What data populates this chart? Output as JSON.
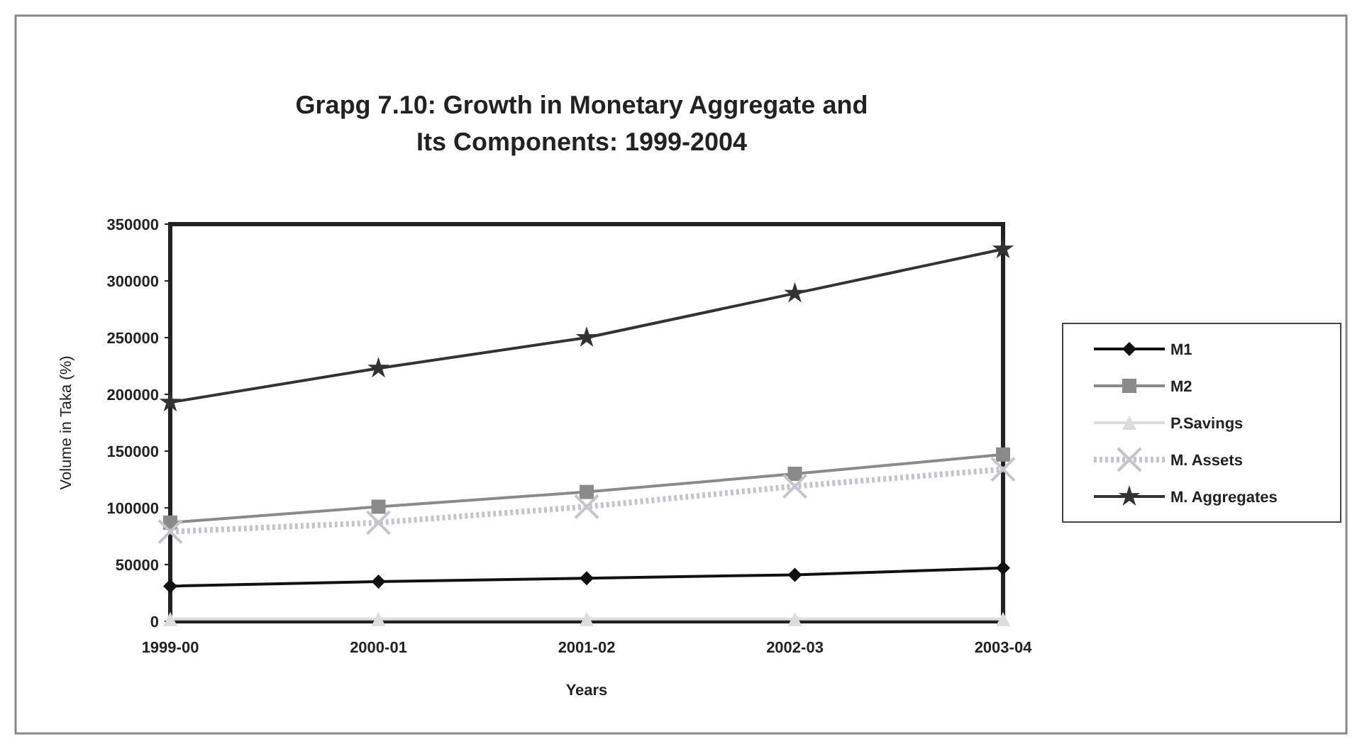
{
  "chart_data": {
    "type": "line",
    "title": "Grapg 7.10: Growth in Monetary Aggregate and Its Components: 1999-2004",
    "xlabel": "Years",
    "ylabel": "Volume in Taka (%)",
    "categories": [
      "1999-00",
      "2000-01",
      "2001-02",
      "2002-03",
      "2003-04"
    ],
    "ylim": [
      0,
      350000
    ],
    "yticks": [
      0,
      50000,
      100000,
      150000,
      200000,
      250000,
      300000,
      350000
    ],
    "grid": false,
    "legend": "right",
    "series": [
      {
        "name": "M1",
        "color": "#111111",
        "marker": "diamond",
        "line_style": "solid",
        "values": [
          31000,
          35000,
          38000,
          41000,
          47000
        ]
      },
      {
        "name": "M2",
        "color": "#8a8a8a",
        "marker": "square",
        "line_style": "solid",
        "values": [
          87000,
          101000,
          114000,
          130000,
          147000
        ]
      },
      {
        "name": "P.Savings",
        "color": "#dcdcdc",
        "marker": "triangle",
        "line_style": "solid",
        "values": [
          2000,
          2000,
          2000,
          2000,
          2000
        ]
      },
      {
        "name": "M. Assets",
        "color": "#c4c4cc",
        "marker": "cross",
        "line_style": "dotted",
        "values": [
          79000,
          87000,
          101000,
          119000,
          134000
        ]
      },
      {
        "name": "M. Aggregates",
        "color": "#333333",
        "marker": "star",
        "line_style": "solid",
        "values": [
          193000,
          223000,
          250000,
          289000,
          328000
        ]
      }
    ]
  }
}
